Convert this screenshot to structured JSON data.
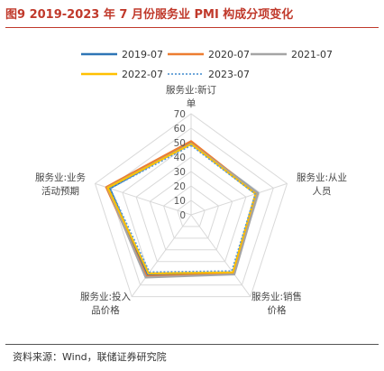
{
  "header": {
    "title": "图9  2019-2023 年 7 月份服务业 PMI 构成分项变化"
  },
  "footer": {
    "source": "资料来源：Wind，联储证券研究院"
  },
  "chart_data": {
    "type": "radar",
    "axes": [
      [
        "服务业:新订",
        "单"
      ],
      [
        "服务业:从业",
        "人员"
      ],
      [
        "服务业:销售",
        "价格"
      ],
      [
        "服务业:投入",
        "品价格"
      ],
      [
        "服务业:业务",
        "活动预期"
      ]
    ],
    "rlim": [
      0,
      70
    ],
    "ticks": [
      "0",
      "10",
      "20",
      "30",
      "40",
      "50",
      "60",
      "70"
    ],
    "grid": true,
    "legend_position": "top",
    "series": [
      {
        "name": "2019-07",
        "color": "#2e75b6",
        "dash": "solid",
        "values": [
          50.0,
          48.7,
          50.3,
          51.8,
          59.2
        ]
      },
      {
        "name": "2020-07",
        "color": "#ed7d31",
        "dash": "solid",
        "values": [
          51.0,
          48.2,
          50.6,
          52.5,
          62.0
        ]
      },
      {
        "name": "2021-07",
        "color": "#a5a5a5",
        "dash": "solid",
        "values": [
          49.3,
          48.7,
          51.0,
          53.6,
          61.0
        ]
      },
      {
        "name": "2022-07",
        "color": "#ffc000",
        "dash": "solid",
        "values": [
          49.0,
          46.9,
          49.2,
          50.1,
          60.7
        ]
      },
      {
        "name": "2023-07",
        "color": "#5b9bd5",
        "dash": "dotted",
        "values": [
          48.0,
          46.8,
          48.0,
          49.0,
          59.0
        ]
      }
    ]
  }
}
